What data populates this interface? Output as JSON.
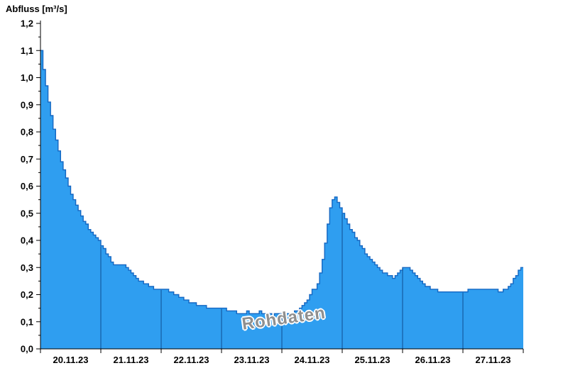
{
  "title": "Abfluss [m³/s]",
  "colors": {
    "fill": "#2f9ef0",
    "line": "#1567c2",
    "separator": "#0f4f92",
    "axis": "#000000",
    "text": "#000000",
    "watermark": "#8f8f8f"
  },
  "chart_data": {
    "type": "area",
    "step": true,
    "title": "Abfluss [m³/s]",
    "ylabel": "Abfluss [m³/s]",
    "xlabel": "",
    "unit": "m³/s",
    "watermark": "Rohdaten",
    "grid": false,
    "legend": "none",
    "ylim": [
      0.0,
      1.2
    ],
    "ytick_step": 0.1,
    "ytick_labels": [
      "0,0",
      "0,1",
      "0,2",
      "0,3",
      "0,4",
      "0,5",
      "0,6",
      "0,7",
      "0,8",
      "0,9",
      "1,0",
      "1,1",
      "1,2"
    ],
    "categories": [
      "20.11.23",
      "21.11.23",
      "22.11.23",
      "23.11.23",
      "24.11.23",
      "25.11.23",
      "26.11.23",
      "27.11.23"
    ],
    "interval_hours": 1,
    "values": [
      1.1,
      1.03,
      0.97,
      0.91,
      0.86,
      0.81,
      0.77,
      0.73,
      0.69,
      0.66,
      0.63,
      0.6,
      0.57,
      0.55,
      0.53,
      0.51,
      0.49,
      0.47,
      0.46,
      0.44,
      0.43,
      0.42,
      0.41,
      0.4,
      0.38,
      0.37,
      0.35,
      0.34,
      0.32,
      0.31,
      0.31,
      0.31,
      0.31,
      0.31,
      0.3,
      0.29,
      0.28,
      0.27,
      0.26,
      0.25,
      0.25,
      0.24,
      0.24,
      0.23,
      0.23,
      0.22,
      0.22,
      0.22,
      0.22,
      0.22,
      0.22,
      0.21,
      0.21,
      0.2,
      0.2,
      0.19,
      0.19,
      0.18,
      0.18,
      0.17,
      0.17,
      0.17,
      0.16,
      0.16,
      0.16,
      0.16,
      0.15,
      0.15,
      0.15,
      0.15,
      0.15,
      0.15,
      0.15,
      0.15,
      0.14,
      0.14,
      0.14,
      0.14,
      0.13,
      0.13,
      0.13,
      0.13,
      0.14,
      0.13,
      0.13,
      0.13,
      0.13,
      0.14,
      0.13,
      0.13,
      0.13,
      0.13,
      0.12,
      0.13,
      0.13,
      0.13,
      0.13,
      0.13,
      0.13,
      0.13,
      0.13,
      0.14,
      0.14,
      0.15,
      0.16,
      0.17,
      0.18,
      0.2,
      0.22,
      0.22,
      0.24,
      0.28,
      0.33,
      0.39,
      0.46,
      0.52,
      0.55,
      0.56,
      0.54,
      0.52,
      0.5,
      0.48,
      0.46,
      0.44,
      0.43,
      0.41,
      0.4,
      0.38,
      0.37,
      0.35,
      0.34,
      0.33,
      0.32,
      0.31,
      0.3,
      0.29,
      0.28,
      0.28,
      0.27,
      0.27,
      0.26,
      0.27,
      0.28,
      0.29,
      0.3,
      0.3,
      0.3,
      0.29,
      0.28,
      0.27,
      0.26,
      0.25,
      0.24,
      0.23,
      0.23,
      0.22,
      0.22,
      0.22,
      0.21,
      0.21,
      0.21,
      0.21,
      0.21,
      0.21,
      0.21,
      0.21,
      0.21,
      0.21,
      0.21,
      0.21,
      0.22,
      0.22,
      0.22,
      0.22,
      0.22,
      0.22,
      0.22,
      0.22,
      0.22,
      0.22,
      0.22,
      0.22,
      0.21,
      0.21,
      0.22,
      0.22,
      0.23,
      0.24,
      0.26,
      0.27,
      0.29,
      0.3,
      0.3
    ]
  }
}
